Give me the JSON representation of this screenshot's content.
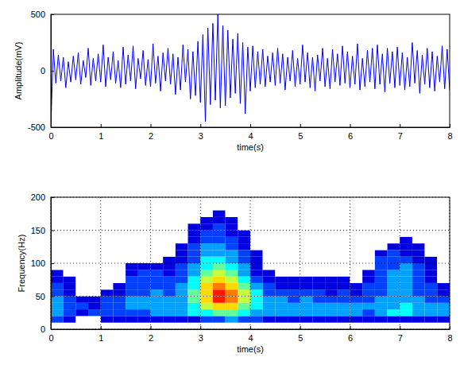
{
  "chart_data": [
    {
      "type": "line",
      "xlabel": "time(s)",
      "ylabel": "Amplitude(mV)",
      "color": "#0000ff",
      "grid": false,
      "xlim": [
        0,
        8
      ],
      "xticks": [
        0,
        1,
        2,
        3,
        4,
        5,
        6,
        7,
        8
      ],
      "ylim": [
        -500,
        500
      ],
      "yticks": [
        -500,
        0,
        500
      ],
      "x": [
        0,
        0.05,
        0.1,
        0.15,
        0.2,
        0.25,
        0.3,
        0.35,
        0.4,
        0.45,
        0.5,
        0.55,
        0.6,
        0.65,
        0.7,
        0.75,
        0.8,
        0.85,
        0.9,
        0.95,
        1,
        1.05,
        1.1,
        1.15,
        1.2,
        1.25,
        1.3,
        1.35,
        1.4,
        1.45,
        1.5,
        1.55,
        1.6,
        1.65,
        1.7,
        1.75,
        1.8,
        1.85,
        1.9,
        1.95,
        2,
        2.05,
        2.1,
        2.15,
        2.2,
        2.25,
        2.3,
        2.35,
        2.4,
        2.45,
        2.5,
        2.55,
        2.6,
        2.65,
        2.7,
        2.75,
        2.8,
        2.85,
        2.9,
        2.95,
        3,
        3.05,
        3.1,
        3.15,
        3.2,
        3.25,
        3.3,
        3.35,
        3.4,
        3.45,
        3.5,
        3.55,
        3.6,
        3.65,
        3.7,
        3.75,
        3.8,
        3.85,
        3.9,
        3.95,
        4,
        4.05,
        4.1,
        4.15,
        4.2,
        4.25,
        4.3,
        4.35,
        4.4,
        4.45,
        4.5,
        4.55,
        4.6,
        4.65,
        4.7,
        4.75,
        4.8,
        4.85,
        4.9,
        4.95,
        5,
        5.05,
        5.1,
        5.15,
        5.2,
        5.25,
        5.3,
        5.35,
        5.4,
        5.45,
        5.5,
        5.55,
        5.6,
        5.65,
        5.7,
        5.75,
        5.8,
        5.85,
        5.9,
        5.95,
        6,
        6.05,
        6.1,
        6.15,
        6.2,
        6.25,
        6.3,
        6.35,
        6.4,
        6.45,
        6.5,
        6.55,
        6.6,
        6.65,
        6.7,
        6.75,
        6.8,
        6.85,
        6.9,
        6.95,
        7,
        7.05,
        7.1,
        7.15,
        7.2,
        7.25,
        7.3,
        7.35,
        7.4,
        7.45,
        7.5,
        7.55,
        7.6,
        7.65,
        7.7,
        7.75,
        7.8,
        7.85,
        7.9,
        7.95,
        8
      ],
      "values": [
        -500,
        190,
        -110,
        140,
        -90,
        120,
        -150,
        80,
        -100,
        130,
        -80,
        160,
        -120,
        90,
        -60,
        200,
        -130,
        110,
        -90,
        150,
        -100,
        230,
        -140,
        120,
        -80,
        170,
        -110,
        90,
        -150,
        210,
        -120,
        140,
        -90,
        220,
        -160,
        110,
        -70,
        180,
        -130,
        100,
        -140,
        240,
        -110,
        130,
        -180,
        160,
        -90,
        200,
        -120,
        150,
        -210,
        120,
        -170,
        230,
        -100,
        190,
        -250,
        170,
        -220,
        260,
        -280,
        320,
        -450,
        380,
        -300,
        420,
        -260,
        500,
        -330,
        400,
        -310,
        360,
        -240,
        280,
        -200,
        330,
        -290,
        250,
        -380,
        210,
        -180,
        220,
        -150,
        170,
        -120,
        190,
        -140,
        130,
        -100,
        160,
        -130,
        200,
        -110,
        150,
        -170,
        120,
        -90,
        180,
        -140,
        110,
        -120,
        230,
        -100,
        160,
        -150,
        120,
        -180,
        140,
        -90,
        200,
        -140,
        110,
        -160,
        190,
        -100,
        150,
        -130,
        220,
        -110,
        170,
        -150,
        130,
        -120,
        240,
        -170,
        110,
        -140,
        180,
        -100,
        200,
        -160,
        230,
        -120,
        150,
        -190,
        200,
        -110,
        170,
        -150,
        210,
        -130,
        160,
        -170,
        120,
        -140,
        250,
        -110,
        180,
        -200,
        140,
        -120,
        200,
        -150,
        170,
        -180,
        130,
        -100,
        220,
        -160,
        190,
        -170
      ]
    },
    {
      "type": "heatmap",
      "xlabel": "time(s)",
      "ylabel": "Frequency(Hz)",
      "grid": true,
      "xlim": [
        0,
        8
      ],
      "xticks": [
        0,
        1,
        2,
        3,
        4,
        5,
        6,
        7,
        8
      ],
      "ylim": [
        0,
        200
      ],
      "yticks": [
        0,
        50,
        100,
        150,
        200
      ],
      "x": [
        0,
        0.25,
        0.5,
        0.75,
        1,
        1.25,
        1.5,
        1.75,
        2,
        2.25,
        2.5,
        2.75,
        3,
        3.25,
        3.5,
        3.75,
        4,
        4.25,
        4.5,
        4.75,
        5,
        5.25,
        5.5,
        5.75,
        6,
        6.25,
        6.5,
        6.75,
        7,
        7.25,
        7.5,
        7.75,
        8
      ],
      "y": [
        0,
        10,
        20,
        30,
        40,
        50,
        60,
        70,
        80,
        90,
        100,
        110,
        120,
        130,
        140,
        150,
        160,
        170,
        180
      ],
      "values": [
        [
          0,
          0,
          0,
          0,
          0,
          0,
          0,
          0,
          0,
          0,
          0,
          0,
          0,
          0,
          0,
          0,
          0,
          0,
          0,
          0,
          0,
          0,
          0,
          0,
          0,
          0,
          0,
          0,
          0,
          0,
          0,
          0
        ],
        [
          0.2,
          0.1,
          0,
          0,
          0.1,
          0.1,
          0.1,
          0.1,
          0.1,
          0.1,
          0.1,
          0.1,
          0.2,
          0.2,
          0.3,
          0.2,
          0.2,
          0.1,
          0.1,
          0.1,
          0.1,
          0.1,
          0.1,
          0.1,
          0.1,
          0.1,
          0.1,
          0.1,
          0.1,
          0.1,
          0.1,
          0.1
        ],
        [
          0.3,
          0.2,
          0.1,
          0.2,
          0.2,
          0.2,
          0.2,
          0.2,
          0.3,
          0.3,
          0.3,
          0.4,
          0.4,
          0.5,
          0.5,
          0.4,
          0.3,
          0.3,
          0.3,
          0.3,
          0.3,
          0.3,
          0.3,
          0.3,
          0.3,
          0.2,
          0.3,
          0.4,
          0.4,
          0.3,
          0.3,
          0.3
        ],
        [
          0.3,
          0.2,
          0.2,
          0.1,
          0.2,
          0.2,
          0.3,
          0.3,
          0.3,
          0.3,
          0.3,
          0.4,
          0.6,
          0.7,
          0.7,
          0.5,
          0.4,
          0.3,
          0.3,
          0.3,
          0.3,
          0.3,
          0.3,
          0.3,
          0.3,
          0.3,
          0.3,
          0.3,
          0.4,
          0.3,
          0.3,
          0.3
        ],
        [
          0.3,
          0.2,
          0.1,
          0.1,
          0.2,
          0.2,
          0.3,
          0.3,
          0.3,
          0.3,
          0.3,
          0.5,
          0.7,
          0.9,
          0.8,
          0.6,
          0.4,
          0.3,
          0.3,
          0.2,
          0.3,
          0.2,
          0.2,
          0.2,
          0.2,
          0.2,
          0.3,
          0.3,
          0.3,
          0.3,
          0.2,
          0.2
        ],
        [
          0.2,
          0.1,
          0,
          0,
          0.1,
          0.1,
          0.2,
          0.2,
          0.3,
          0.2,
          0.3,
          0.5,
          0.7,
          0.9,
          0.8,
          0.6,
          0.4,
          0.2,
          0.2,
          0.2,
          0.2,
          0.2,
          0.1,
          0.2,
          0.1,
          0.2,
          0.2,
          0.3,
          0.3,
          0.2,
          0.2,
          0.1
        ],
        [
          0.2,
          0.1,
          0,
          0,
          0,
          0.1,
          0.2,
          0.2,
          0.2,
          0.2,
          0.3,
          0.4,
          0.7,
          0.8,
          0.7,
          0.5,
          0.3,
          0.2,
          0.1,
          0.1,
          0.1,
          0.1,
          0.1,
          0.1,
          0.1,
          0.2,
          0.2,
          0.3,
          0.3,
          0.2,
          0.2,
          0.1
        ],
        [
          0.1,
          0.1,
          0,
          0,
          0,
          0,
          0.2,
          0.2,
          0.2,
          0.2,
          0.2,
          0.4,
          0.6,
          0.7,
          0.6,
          0.4,
          0.2,
          0.1,
          0.1,
          0.1,
          0.1,
          0.1,
          0.1,
          0.1,
          0,
          0.1,
          0.2,
          0.3,
          0.3,
          0.2,
          0.1,
          0
        ],
        [
          0.1,
          0,
          0,
          0,
          0,
          0,
          0.1,
          0.2,
          0.2,
          0.1,
          0.2,
          0.3,
          0.5,
          0.6,
          0.5,
          0.3,
          0.1,
          0.1,
          0,
          0,
          0,
          0,
          0,
          0,
          0,
          0.1,
          0.2,
          0.3,
          0.3,
          0.2,
          0.1,
          0
        ],
        [
          0,
          0,
          0,
          0,
          0,
          0,
          0.1,
          0.1,
          0.1,
          0.1,
          0.2,
          0.3,
          0.4,
          0.5,
          0.4,
          0.3,
          0.1,
          0,
          0,
          0,
          0,
          0,
          0,
          0,
          0,
          0,
          0.2,
          0.2,
          0.3,
          0.2,
          0.1,
          0
        ],
        [
          0,
          0,
          0,
          0,
          0,
          0,
          0,
          0,
          0,
          0.1,
          0.1,
          0.2,
          0.4,
          0.4,
          0.3,
          0.2,
          0.1,
          0,
          0,
          0,
          0,
          0,
          0,
          0,
          0,
          0,
          0.2,
          0.2,
          0.2,
          0.1,
          0.1,
          0
        ],
        [
          0,
          0,
          0,
          0,
          0,
          0,
          0,
          0,
          0,
          0,
          0.1,
          0.2,
          0.3,
          0.3,
          0.3,
          0.2,
          0.1,
          0,
          0,
          0,
          0,
          0,
          0,
          0,
          0,
          0,
          0.1,
          0.2,
          0.1,
          0.1,
          0,
          0
        ],
        [
          0,
          0,
          0,
          0,
          0,
          0,
          0,
          0,
          0,
          0,
          0.1,
          0.2,
          0.3,
          0.3,
          0.2,
          0.1,
          0,
          0,
          0,
          0,
          0,
          0,
          0,
          0,
          0,
          0,
          0,
          0.1,
          0.1,
          0.1,
          0,
          0
        ],
        [
          0,
          0,
          0,
          0,
          0,
          0,
          0,
          0,
          0,
          0,
          0,
          0.1,
          0.2,
          0.2,
          0.2,
          0.1,
          0,
          0,
          0,
          0,
          0,
          0,
          0,
          0,
          0,
          0,
          0,
          0,
          0.1,
          0,
          0,
          0
        ],
        [
          0,
          0,
          0,
          0,
          0,
          0,
          0,
          0,
          0,
          0,
          0,
          0.1,
          0.2,
          0.2,
          0.1,
          0.1,
          0,
          0,
          0,
          0,
          0,
          0,
          0,
          0,
          0,
          0,
          0,
          0,
          0,
          0,
          0,
          0
        ],
        [
          0,
          0,
          0,
          0,
          0,
          0,
          0,
          0,
          0,
          0,
          0,
          0.1,
          0.1,
          0.2,
          0.1,
          0,
          0,
          0,
          0,
          0,
          0,
          0,
          0,
          0,
          0,
          0,
          0,
          0,
          0,
          0,
          0,
          0
        ],
        [
          0,
          0,
          0,
          0,
          0,
          0,
          0,
          0,
          0,
          0,
          0,
          0,
          0.1,
          0.1,
          0.1,
          0,
          0,
          0,
          0,
          0,
          0,
          0,
          0,
          0,
          0,
          0,
          0,
          0,
          0,
          0,
          0,
          0
        ],
        [
          0,
          0,
          0,
          0,
          0,
          0,
          0,
          0,
          0,
          0,
          0,
          0,
          0,
          0.1,
          0,
          0,
          0,
          0,
          0,
          0,
          0,
          0,
          0,
          0,
          0,
          0,
          0,
          0,
          0,
          0,
          0,
          0
        ]
      ]
    }
  ]
}
